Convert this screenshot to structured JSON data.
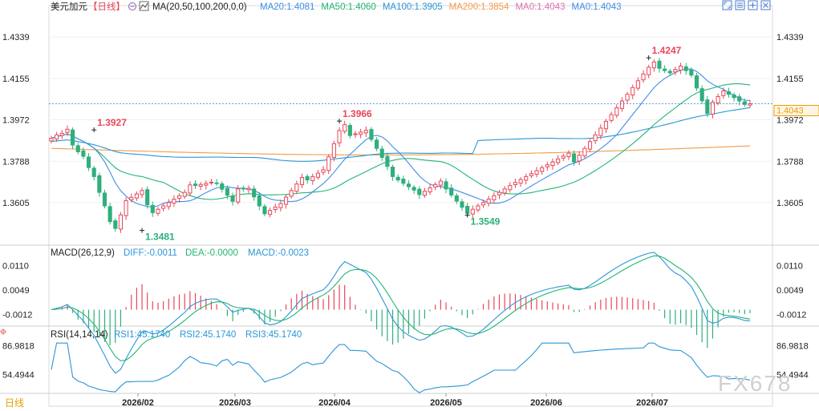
{
  "header": {
    "symbol": "美元加元",
    "period": "【日线】",
    "ma_label": "MA(20,50,100,200,0,0)",
    "ma_values": [
      {
        "text": "MA20:1.4081",
        "color": "#3f8ee8"
      },
      {
        "text": "MA50:1.4060",
        "color": "#22b573"
      },
      {
        "text": "MA100:1.3905",
        "color": "#2a96d8"
      },
      {
        "text": "MA200:1.3854",
        "color": "#f39c4a"
      },
      {
        "text": "MA0:1.4043",
        "color": "#e06fb0"
      },
      {
        "text": "MA0:1.4043",
        "color": "#3f8ee8"
      }
    ],
    "toolbar_icons": [
      "expand-icon",
      "settings-icon",
      "add-panel-icon",
      "close-icon"
    ]
  },
  "footer": {
    "period_button": "日线",
    "dates": [
      "2026/02",
      "2026/03",
      "2026/04",
      "2026/05",
      "2026/06",
      "2026/07"
    ],
    "watermark": "FX678"
  },
  "colors": {
    "up": "#e8475a",
    "down": "#2eaf7d",
    "ma20": "#3f8ee8",
    "ma50": "#22b573",
    "ma100": "#2a96d8",
    "ma200": "#f39c4a",
    "diff": "#2a96d8",
    "dea": "#22b573",
    "rsi": "#2a96d8",
    "last_price": "#e8a000"
  },
  "chart_data": [
    {
      "type": "candlestick",
      "title": "美元加元【日线】",
      "ylim": [
        1.343,
        1.4425
      ],
      "yticks": [
        1.3605,
        1.3788,
        1.3972,
        1.4155,
        1.4339
      ],
      "ytick_labels": [
        "1.3605",
        "1.3788",
        "1.3972",
        "1.4155",
        "1.4339"
      ],
      "last_price": 1.4043,
      "last_price_label": "1.4043",
      "annotations": [
        {
          "label": "1.3927",
          "value": 1.3927,
          "type": "high"
        },
        {
          "label": "1.3481",
          "value": 1.3481,
          "type": "low"
        },
        {
          "label": "1.3966",
          "value": 1.3966,
          "type": "high"
        },
        {
          "label": "1.3549",
          "value": 1.3549,
          "type": "low"
        },
        {
          "label": "1.4247",
          "value": 1.4247,
          "type": "high"
        }
      ],
      "closes": [
        1.389,
        1.3905,
        1.3912,
        1.393,
        1.386,
        1.383,
        1.381,
        1.376,
        1.372,
        1.365,
        1.359,
        1.352,
        1.349,
        1.355,
        1.3613,
        1.3628,
        1.3643,
        1.3658,
        1.3595,
        1.356,
        1.3575,
        1.359,
        1.3605,
        1.362,
        1.3635,
        1.365,
        1.3683,
        1.368,
        1.3685,
        1.369,
        1.3695,
        1.3691,
        1.3664,
        1.3637,
        1.361,
        1.3665,
        1.3665,
        1.3668,
        1.363,
        1.359,
        1.3555,
        1.357,
        1.3585,
        1.36,
        1.3629,
        1.3658,
        1.3687,
        1.3716,
        1.3705,
        1.372,
        1.3735,
        1.375,
        1.3808,
        1.3866,
        1.3924,
        1.395,
        1.3902,
        1.391,
        1.3917,
        1.3925,
        1.3885,
        1.3845,
        1.3805,
        1.3765,
        1.372,
        1.3705,
        1.369,
        1.3675,
        1.366,
        1.364,
        1.3655,
        1.367,
        1.3685,
        1.37,
        1.3665,
        1.3638,
        1.3611,
        1.3584,
        1.3557,
        1.3575,
        1.359,
        1.3605,
        1.362,
        1.3635,
        1.365,
        1.3665,
        1.368,
        1.3694,
        1.3707,
        1.372,
        1.3733,
        1.3746,
        1.3759,
        1.3772,
        1.3785,
        1.3798,
        1.3811,
        1.3824,
        1.3785,
        1.3815,
        1.3845,
        1.3875,
        1.3905,
        1.3935,
        1.3965,
        1.3995,
        1.4025,
        1.4055,
        1.4085,
        1.4115,
        1.4145,
        1.4175,
        1.4205,
        1.4228,
        1.42,
        1.419,
        1.418,
        1.4195,
        1.421,
        1.419,
        1.417,
        1.4113,
        1.4056,
        1.4,
        1.405,
        1.4075,
        1.41,
        1.4085,
        1.407,
        1.4055,
        1.404,
        1.4043
      ]
    },
    {
      "type": "line",
      "title": "MACD(26,12,9)",
      "series": [
        {
          "name": "DIFF",
          "label": "DIFF:-0.0011"
        },
        {
          "name": "DEA",
          "label": "DEA:-0.0000"
        },
        {
          "name": "MACD",
          "label": "MACD:-0.0023"
        }
      ],
      "yticks": [
        0.011,
        0.0049,
        -0.0012
      ],
      "ytick_labels": [
        "0.0110",
        "0.0049",
        "-0.0012"
      ]
    },
    {
      "type": "line",
      "title": "RSI(14,14,14)",
      "series": [
        {
          "name": "RSI1",
          "label": "RSI1:45.1740"
        },
        {
          "name": "RSI2",
          "label": "RSI2:45.1740"
        },
        {
          "name": "RSI3",
          "label": "RSI3:45.1740"
        }
      ],
      "yticks": [
        86.9818,
        54.4944
      ],
      "ytick_labels": [
        "86.9818",
        "54.4944"
      ]
    }
  ]
}
